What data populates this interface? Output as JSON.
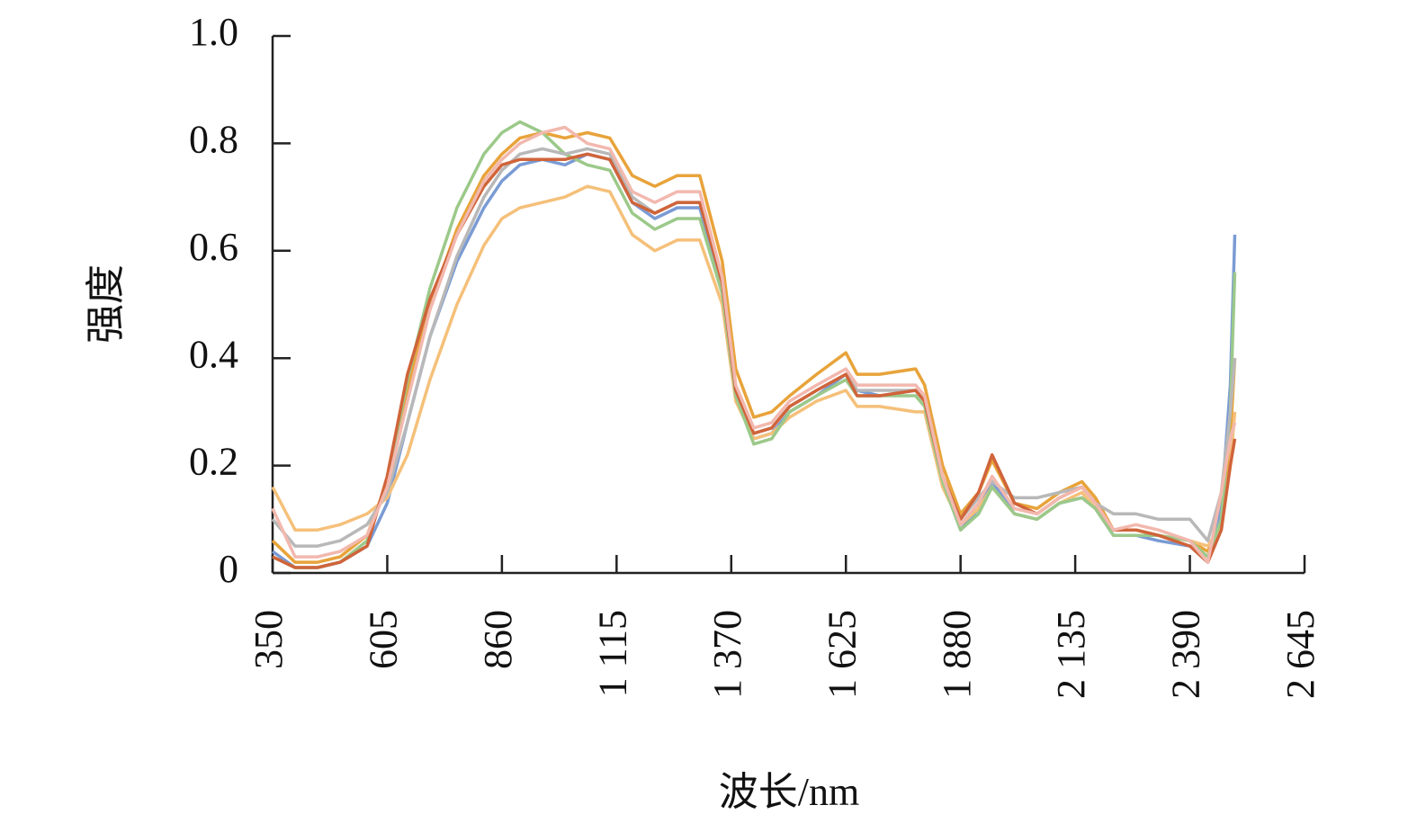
{
  "chart_data": {
    "type": "line",
    "xlabel": "波长/nm",
    "ylabel": "强度",
    "x": [
      350,
      400,
      450,
      500,
      560,
      605,
      650,
      700,
      760,
      820,
      860,
      900,
      950,
      1000,
      1050,
      1100,
      1150,
      1200,
      1250,
      1300,
      1350,
      1380,
      1420,
      1460,
      1500,
      1560,
      1625,
      1650,
      1700,
      1780,
      1800,
      1840,
      1880,
      1920,
      1950,
      2000,
      2050,
      2100,
      2150,
      2180,
      2220,
      2270,
      2320,
      2390,
      2430,
      2460,
      2480,
      2490
    ],
    "series": [
      {
        "color": "#e8a33a",
        "values": [
          0.06,
          0.02,
          0.02,
          0.03,
          0.07,
          0.17,
          0.34,
          0.5,
          0.64,
          0.74,
          0.78,
          0.81,
          0.82,
          0.81,
          0.82,
          0.81,
          0.74,
          0.72,
          0.74,
          0.74,
          0.58,
          0.38,
          0.29,
          0.3,
          0.33,
          0.37,
          0.41,
          0.37,
          0.37,
          0.38,
          0.35,
          0.2,
          0.11,
          0.15,
          0.21,
          0.13,
          0.12,
          0.15,
          0.17,
          0.14,
          0.08,
          0.08,
          0.07,
          0.06,
          0.04,
          0.1,
          0.25,
          0.4
        ]
      },
      {
        "color": "#7a9bd4",
        "values": [
          0.04,
          0.01,
          0.01,
          0.02,
          0.05,
          0.13,
          0.28,
          0.44,
          0.58,
          0.68,
          0.73,
          0.76,
          0.77,
          0.76,
          0.78,
          0.77,
          0.69,
          0.66,
          0.68,
          0.68,
          0.53,
          0.33,
          0.25,
          0.26,
          0.3,
          0.33,
          0.37,
          0.34,
          0.33,
          0.34,
          0.32,
          0.17,
          0.08,
          0.12,
          0.17,
          0.11,
          0.1,
          0.13,
          0.14,
          0.12,
          0.07,
          0.07,
          0.06,
          0.05,
          0.02,
          0.12,
          0.35,
          0.63
        ]
      },
      {
        "color": "#f5c07a",
        "values": [
          0.16,
          0.08,
          0.08,
          0.09,
          0.11,
          0.14,
          0.22,
          0.36,
          0.5,
          0.61,
          0.66,
          0.68,
          0.69,
          0.7,
          0.72,
          0.71,
          0.63,
          0.6,
          0.62,
          0.62,
          0.5,
          0.32,
          0.25,
          0.26,
          0.29,
          0.32,
          0.34,
          0.31,
          0.31,
          0.3,
          0.3,
          0.16,
          0.09,
          0.12,
          0.16,
          0.11,
          0.1,
          0.13,
          0.15,
          0.12,
          0.08,
          0.08,
          0.07,
          0.06,
          0.05,
          0.09,
          0.2,
          0.3
        ]
      },
      {
        "color": "#9cc98a",
        "values": [
          0.03,
          0.01,
          0.01,
          0.02,
          0.06,
          0.17,
          0.36,
          0.53,
          0.68,
          0.78,
          0.82,
          0.84,
          0.82,
          0.78,
          0.76,
          0.75,
          0.67,
          0.64,
          0.66,
          0.66,
          0.52,
          0.33,
          0.24,
          0.25,
          0.3,
          0.33,
          0.36,
          0.33,
          0.33,
          0.33,
          0.31,
          0.17,
          0.08,
          0.11,
          0.16,
          0.11,
          0.1,
          0.13,
          0.14,
          0.12,
          0.07,
          0.07,
          0.07,
          0.06,
          0.03,
          0.1,
          0.3,
          0.56
        ]
      },
      {
        "color": "#b8b8b8",
        "values": [
          0.1,
          0.05,
          0.05,
          0.06,
          0.09,
          0.15,
          0.28,
          0.44,
          0.59,
          0.7,
          0.75,
          0.78,
          0.79,
          0.78,
          0.79,
          0.78,
          0.7,
          0.67,
          0.69,
          0.69,
          0.54,
          0.34,
          0.26,
          0.27,
          0.31,
          0.34,
          0.37,
          0.34,
          0.34,
          0.34,
          0.32,
          0.18,
          0.1,
          0.14,
          0.17,
          0.14,
          0.14,
          0.15,
          0.16,
          0.13,
          0.11,
          0.11,
          0.1,
          0.1,
          0.06,
          0.15,
          0.3,
          0.4
        ]
      },
      {
        "color": "#d0643a",
        "values": [
          0.03,
          0.01,
          0.01,
          0.02,
          0.05,
          0.18,
          0.37,
          0.51,
          0.63,
          0.72,
          0.76,
          0.77,
          0.77,
          0.77,
          0.78,
          0.77,
          0.69,
          0.67,
          0.69,
          0.69,
          0.54,
          0.34,
          0.26,
          0.27,
          0.31,
          0.34,
          0.37,
          0.33,
          0.33,
          0.34,
          0.32,
          0.18,
          0.1,
          0.15,
          0.22,
          0.13,
          0.11,
          0.14,
          0.16,
          0.13,
          0.08,
          0.08,
          0.07,
          0.05,
          0.02,
          0.08,
          0.2,
          0.25
        ]
      },
      {
        "color": "#f2b8ae",
        "values": [
          0.12,
          0.03,
          0.03,
          0.04,
          0.07,
          0.16,
          0.32,
          0.49,
          0.63,
          0.73,
          0.77,
          0.8,
          0.82,
          0.83,
          0.8,
          0.79,
          0.71,
          0.69,
          0.71,
          0.71,
          0.55,
          0.35,
          0.27,
          0.28,
          0.32,
          0.35,
          0.38,
          0.35,
          0.35,
          0.35,
          0.33,
          0.18,
          0.09,
          0.13,
          0.18,
          0.12,
          0.11,
          0.14,
          0.16,
          0.13,
          0.08,
          0.09,
          0.08,
          0.06,
          0.02,
          0.15,
          0.25,
          0.28
        ]
      }
    ],
    "xlim": [
      350,
      2645
    ],
    "xticks": [
      350,
      605,
      860,
      {
        "value": 1115,
        "label": "1 115"
      },
      {
        "value": 1370,
        "label": "1 370"
      },
      {
        "value": 1625,
        "label": "1 625"
      },
      {
        "value": 1880,
        "label": "1 880"
      },
      {
        "value": 2135,
        "label": "2 135"
      },
      {
        "value": 2390,
        "label": "2 390"
      },
      {
        "value": 2645,
        "label": "2 645"
      }
    ],
    "ylim": [
      0,
      1
    ],
    "yticks": [
      0,
      0.2,
      0.4,
      0.6,
      0.8,
      {
        "value": 1,
        "label": "1.0"
      }
    ]
  }
}
